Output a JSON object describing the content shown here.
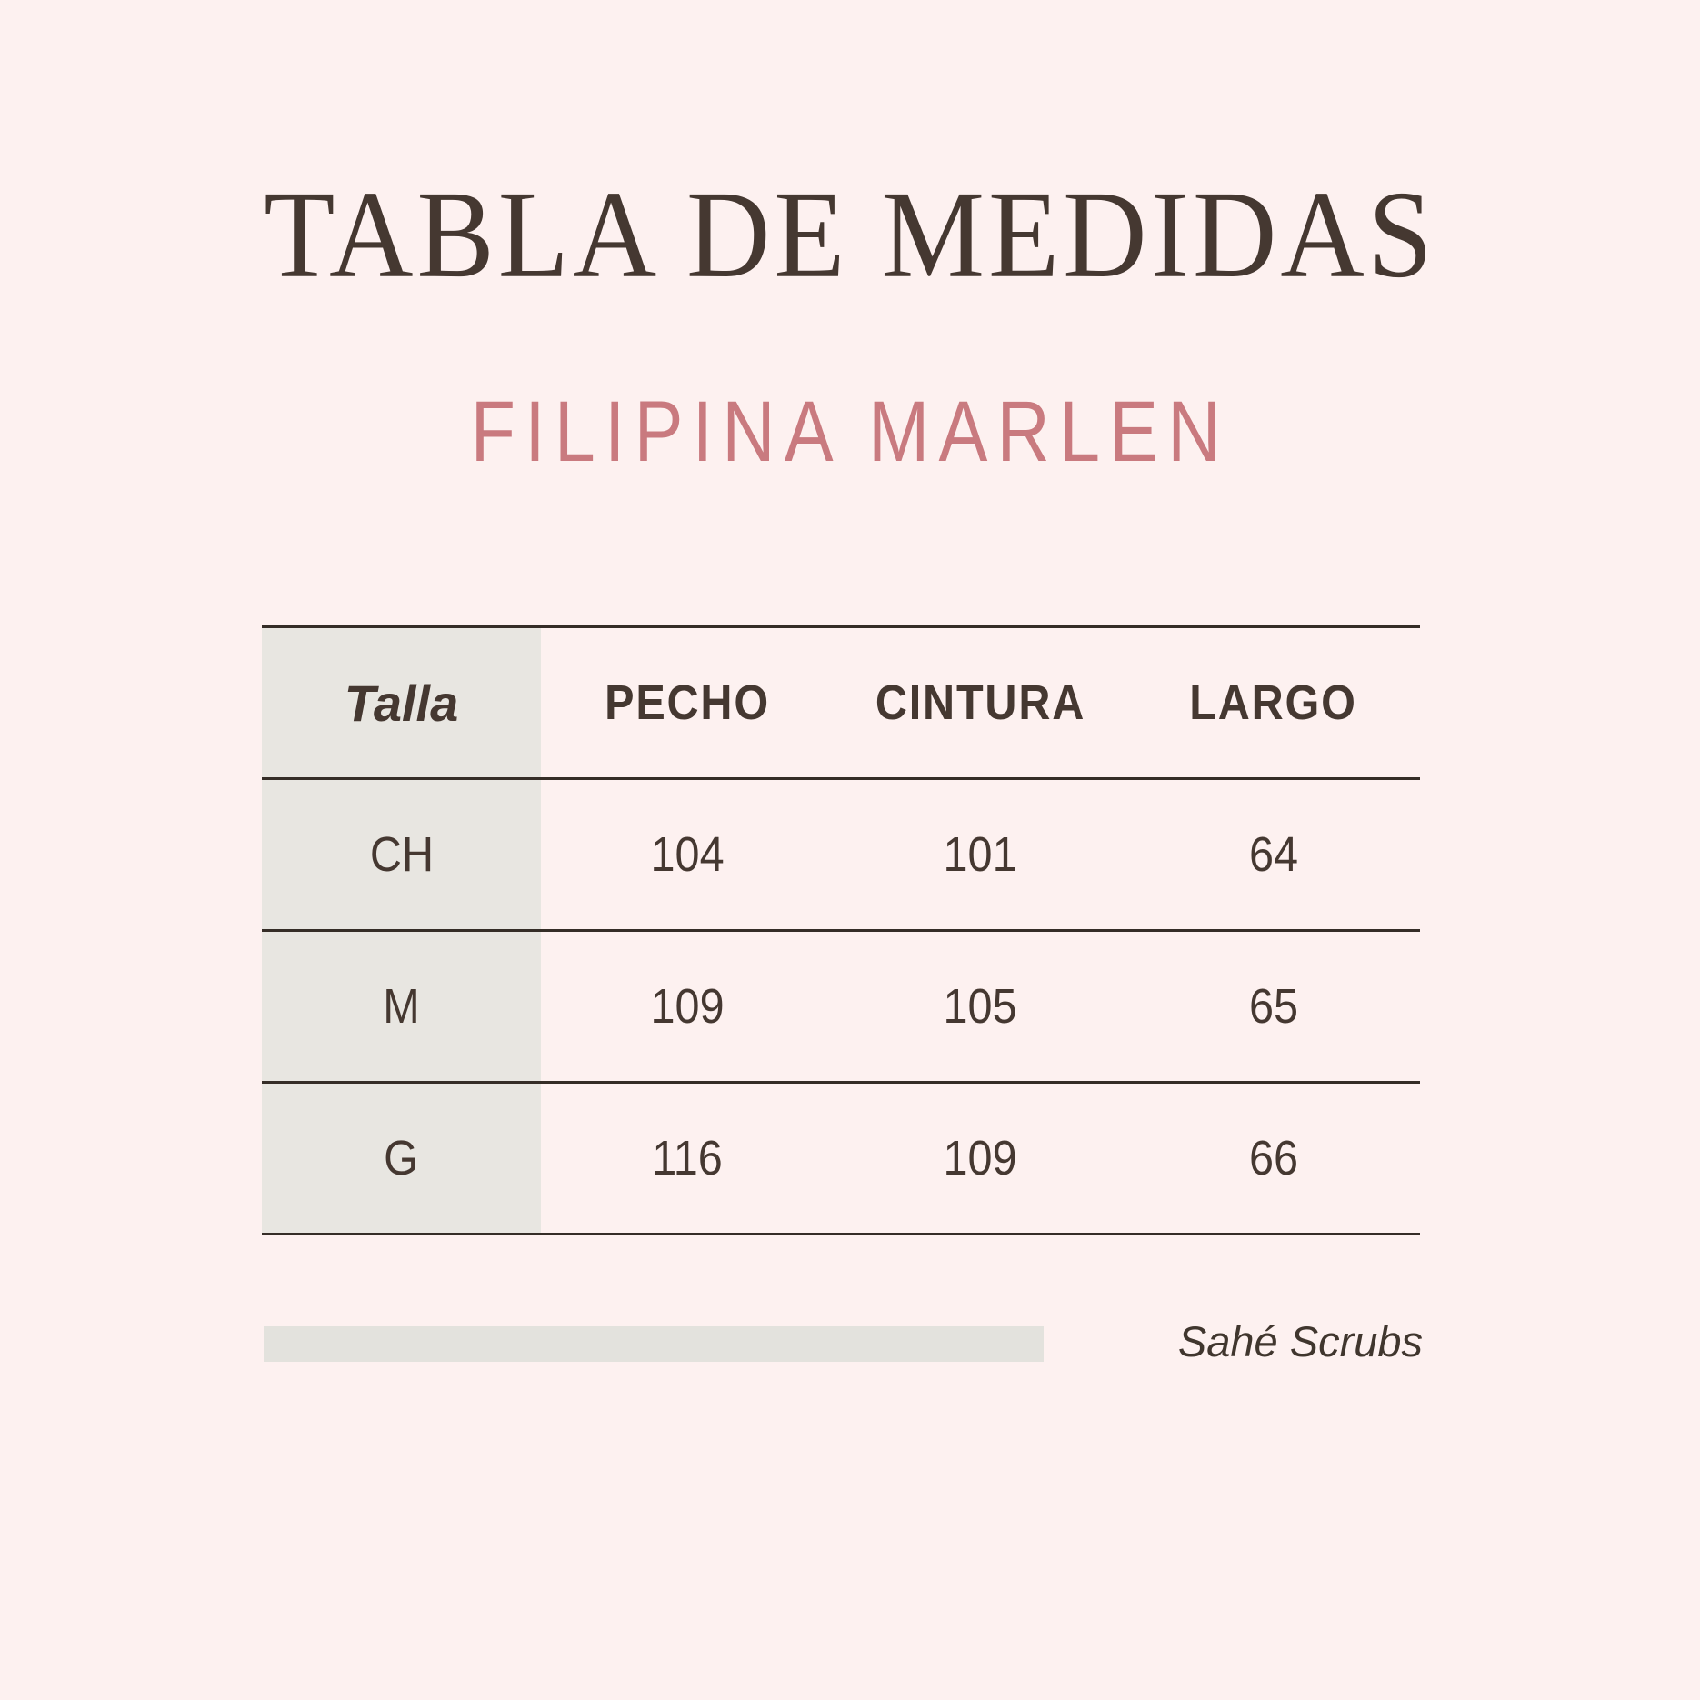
{
  "page": {
    "title": "TABLA DE MEDIDAS",
    "subtitle": "FILIPINA MARLEN",
    "brand": "Sahé Scrubs"
  },
  "table": {
    "header": {
      "size_label": "Talla",
      "columns": [
        "PECHO",
        "CINTURA",
        "LARGO"
      ]
    },
    "rows": [
      {
        "size": "CH",
        "values": [
          "104",
          "101",
          "64"
        ]
      },
      {
        "size": "M",
        "values": [
          "109",
          "105",
          "65"
        ]
      },
      {
        "size": "G",
        "values": [
          "116",
          "109",
          "66"
        ]
      }
    ]
  },
  "colors": {
    "background": "#fdf1f0",
    "text_dark": "#453831",
    "accent_pink": "#c97a7f",
    "size_column_bg": "#e8e6e1",
    "footer_bar_bg": "#e3e2dd",
    "line": "#352d27"
  }
}
